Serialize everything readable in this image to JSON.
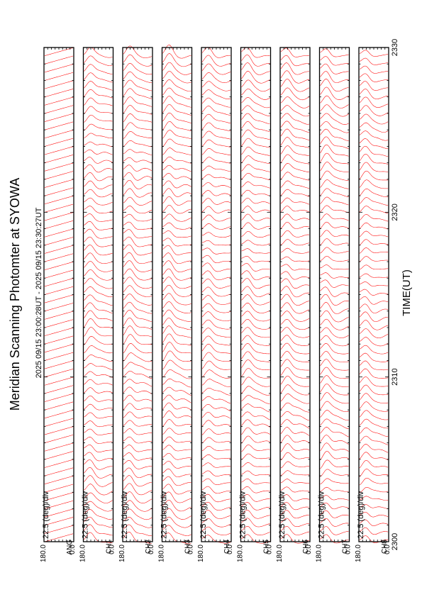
{
  "title": "Meridian Scanning Photomter at SYOWA",
  "time_range": "2025 09/15 23:00:28UT - 2025 09/15 23:30:27UT",
  "xlabel": "TIME(UT)",
  "colors": {
    "trace": "#ff0000",
    "axis": "#000000",
    "background": "#ffffff"
  },
  "chart_data": {
    "type": "line",
    "orientation": "rotated-90-ccw",
    "x_ticks": [
      "2300",
      "2310",
      "2320",
      "2330"
    ],
    "xlim": [
      0,
      30
    ],
    "ylim": [
      0,
      180
    ],
    "panels": [
      {
        "channel": "ANG",
        "scale": "22.5 (deg)/div",
        "y_top": "180.0",
        "y_bottom": "0.0",
        "kind": "sawtooth",
        "amplitude": 1.0,
        "phase": 0.0
      },
      {
        "channel": "CH1",
        "scale": "22.5 (deg)/div",
        "y_top": "180.0",
        "y_bottom": "0.0",
        "kind": "scan",
        "amplitude": 0.55,
        "phase": 0.3
      },
      {
        "channel": "CH2",
        "scale": "22.5 (deg)/div",
        "y_top": "180.0",
        "y_bottom": "0.0",
        "kind": "scan",
        "amplitude": 0.6,
        "phase": 1.1
      },
      {
        "channel": "CH3",
        "scale": "22.5 (deg)/div",
        "y_top": "180.0",
        "y_bottom": "0.0",
        "kind": "scan",
        "amplitude": 0.62,
        "phase": 2.0
      },
      {
        "channel": "CH4",
        "scale": "22.5 (deg)/div",
        "y_top": "180.0",
        "y_bottom": "0.0",
        "kind": "scan",
        "amplitude": 0.5,
        "phase": 2.7
      },
      {
        "channel": "CH5",
        "scale": "22.5 (deg)/div",
        "y_top": "180.0",
        "y_bottom": "0.0",
        "kind": "scan",
        "amplitude": 0.55,
        "phase": 3.5
      },
      {
        "channel": "CH6",
        "scale": "22.5 (deg)/div",
        "y_top": "180.0",
        "y_bottom": "0.0",
        "kind": "scan",
        "amplitude": 0.58,
        "phase": 4.2
      },
      {
        "channel": "CH7",
        "scale": "22.5 (deg)/div",
        "y_top": "180.0",
        "y_bottom": "0.0",
        "kind": "scan",
        "amplitude": 0.6,
        "phase": 5.0
      },
      {
        "channel": "CH8",
        "scale": "22.5 (deg)/div",
        "y_top": "180.0",
        "y_bottom": "0.0",
        "kind": "scan",
        "amplitude": 0.52,
        "phase": 5.8
      }
    ]
  }
}
